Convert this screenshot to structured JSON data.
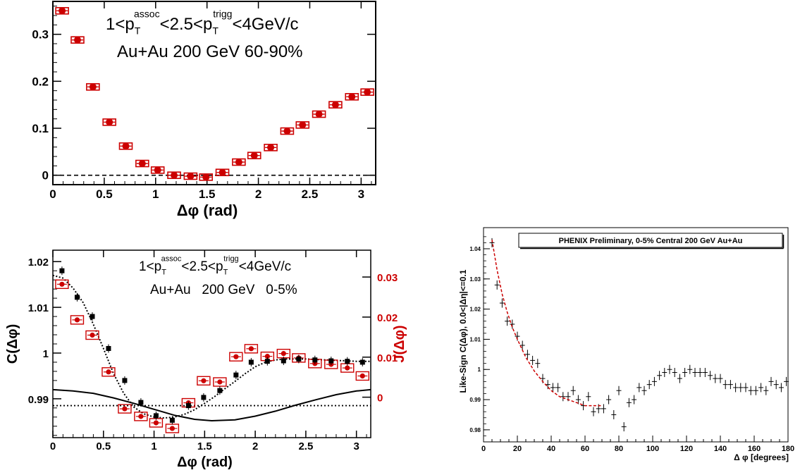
{
  "chart_data": [
    {
      "type": "scatter",
      "annotation_line1": "1<p_T^assoc<2.5<p_T^trigg<4GeV/c",
      "annotation_parts": [
        "1<p",
        "T",
        "assoc",
        "<2.5<p",
        "T",
        "trigg",
        "<4GeV/c"
      ],
      "annotation_line2": "Au+Au 200 GeV 60-90%",
      "xlabel": "Δφ (rad)",
      "xlim": [
        0,
        3.14159
      ],
      "ylim": [
        -0.02,
        0.37
      ],
      "xticks": [
        "0",
        "0.5",
        "1",
        "1.5",
        "2",
        "2.5",
        "3"
      ],
      "yticks": [
        "0",
        "0.1",
        "0.2",
        "0.3"
      ],
      "colors": {
        "points": "#cc0000"
      },
      "series": [
        {
          "x": [
            0.09,
            0.24,
            0.39,
            0.55,
            0.71,
            0.87,
            1.02,
            1.18,
            1.34,
            1.49,
            1.65,
            1.81,
            1.96,
            2.12,
            2.28,
            2.43,
            2.59,
            2.75,
            2.91,
            3.06
          ],
          "y": [
            0.35,
            0.288,
            0.188,
            0.113,
            0.062,
            0.025,
            0.011,
            0.0,
            -0.002,
            -0.004,
            0.006,
            0.028,
            0.042,
            0.059,
            0.094,
            0.107,
            0.13,
            0.15,
            0.167,
            0.177
          ]
        }
      ],
      "reference_line": 0
    },
    {
      "type": "scatter",
      "annotation_line1": "1<p_T^assoc<2.5<p_T^trigg<4GeV/c",
      "annotation_parts": [
        "1<p",
        "T",
        "assoc",
        "<2.5<p",
        "T",
        "trigg",
        "<4GeV/c"
      ],
      "annotation_line2": "Au+Au   200 GeV   0-5%",
      "xlabel": "Δφ (rad)",
      "ylabel": "C(Δφ)",
      "y2label": "J(Δφ)",
      "xlim": [
        0,
        3.14159
      ],
      "ylim": [
        0.9815,
        1.0225
      ],
      "y2lim": [
        -0.0101,
        0.0367
      ],
      "xticks": [
        "0",
        "0.5",
        "1",
        "1.5",
        "2",
        "2.5",
        "3"
      ],
      "yticks": [
        "0.99",
        "1",
        "1.01",
        "1.02"
      ],
      "y2ticks": [
        "0",
        "0.01",
        "0.02",
        "0.03"
      ],
      "colors": {
        "C": "#000000",
        "J": "#cc0000"
      },
      "series_C": {
        "x": [
          0.09,
          0.24,
          0.39,
          0.55,
          0.71,
          0.87,
          1.02,
          1.18,
          1.34,
          1.49,
          1.65,
          1.81,
          1.96,
          2.12,
          2.28,
          2.43,
          2.59,
          2.75,
          2.91,
          3.06
        ],
        "y": [
          1.018,
          1.0122,
          1.008,
          1.001,
          0.994,
          0.9892,
          0.9863,
          0.9853,
          0.9885,
          0.9903,
          0.9918,
          0.9952,
          0.998,
          0.9982,
          0.9983,
          0.9987,
          0.9985,
          0.9983,
          0.9982,
          0.998
        ]
      },
      "series_J": {
        "x": [
          0.09,
          0.24,
          0.39,
          0.55,
          0.71,
          0.87,
          1.02,
          1.18,
          1.34,
          1.49,
          1.65,
          1.81,
          1.96,
          2.12,
          2.28,
          2.43,
          2.59,
          2.75,
          2.91,
          3.06
        ],
        "y": [
          0.0282,
          0.0193,
          0.0155,
          0.0063,
          -0.0029,
          -0.0048,
          -0.0064,
          -0.0078,
          -0.0014,
          0.0041,
          0.0038,
          0.0101,
          0.0121,
          0.0102,
          0.0109,
          0.0098,
          0.0084,
          0.0082,
          0.0073,
          0.0053
        ]
      },
      "fit_dotted": {
        "x": [
          0.0,
          0.1,
          0.2,
          0.3,
          0.4,
          0.5,
          0.6,
          0.7,
          0.8,
          0.9,
          1.0,
          1.1,
          1.2,
          1.3,
          1.4,
          1.5,
          1.6,
          1.7,
          1.8,
          1.9,
          2.0,
          2.1,
          2.2,
          2.3,
          2.4,
          2.5,
          2.6,
          2.7,
          2.8,
          2.9,
          3.0,
          3.14
        ],
        "y": [
          1.017,
          1.0164,
          1.0142,
          1.011,
          1.0063,
          1.001,
          0.9955,
          0.9912,
          0.9882,
          0.9867,
          0.986,
          0.9858,
          0.986,
          0.9866,
          0.9876,
          0.989,
          0.9905,
          0.9922,
          0.9938,
          0.9955,
          0.997,
          0.998,
          0.9985,
          0.9987,
          0.9987,
          0.9987,
          0.9986,
          0.9985,
          0.9984,
          0.9983,
          0.9982,
          0.9982
        ]
      },
      "flow_solid": {
        "x": [
          0.0,
          0.2,
          0.4,
          0.6,
          0.8,
          1.0,
          1.2,
          1.4,
          1.57,
          1.8,
          2.0,
          2.2,
          2.4,
          2.6,
          2.8,
          3.0,
          3.14
        ],
        "y": [
          0.992,
          0.9917,
          0.9912,
          0.9902,
          0.989,
          0.9877,
          0.9864,
          0.9855,
          0.9852,
          0.9854,
          0.9862,
          0.9873,
          0.9886,
          0.9898,
          0.9909,
          0.9917,
          0.992
        ]
      },
      "reference_line": 0.9885
    },
    {
      "type": "scatter",
      "legend": "PHENIX Preliminary, 0-5% Central 200 GeV Au+Au",
      "xlabel": "Δ φ [degrees]",
      "ylabel": "Like-Sign C(Δφ), 0.0<|Δη|<=0.1",
      "xlim": [
        0,
        180
      ],
      "ylim": [
        0.976,
        1.047
      ],
      "xticks": [
        "0",
        "20",
        "40",
        "60",
        "80",
        "100",
        "120",
        "140",
        "160",
        "180"
      ],
      "yticks": [
        "0.98",
        "0.99",
        "1",
        "1.01",
        "1.02",
        "1.03",
        "1.04"
      ],
      "colors": {
        "points": "#000000",
        "fit": "#cc0000"
      },
      "series": [
        {
          "x": [
            5,
            8,
            11,
            14,
            17,
            20,
            23,
            26,
            29,
            32,
            35,
            38,
            41,
            44,
            47,
            50,
            53,
            56,
            59,
            62,
            65,
            68,
            71,
            74,
            77,
            80,
            83,
            86,
            89,
            92,
            95,
            98,
            101,
            104,
            107,
            110,
            113,
            116,
            119,
            122,
            125,
            128,
            131,
            134,
            137,
            140,
            143,
            146,
            149,
            152,
            155,
            158,
            161,
            164,
            167,
            170,
            173,
            176,
            179
          ],
          "y": [
            1.042,
            1.028,
            1.022,
            1.016,
            1.015,
            1.011,
            1.008,
            1.005,
            1.003,
            1.002,
            0.997,
            0.995,
            0.994,
            0.994,
            0.991,
            0.991,
            0.993,
            0.99,
            0.988,
            0.991,
            0.986,
            0.987,
            0.987,
            0.99,
            0.985,
            0.993,
            0.981,
            0.989,
            0.99,
            0.994,
            0.993,
            0.995,
            0.996,
            0.998,
            0.999,
            1.0,
            0.999,
            0.997,
            0.999,
            1.0,
            0.999,
            0.999,
            0.999,
            0.998,
            0.997,
            0.997,
            0.995,
            0.995,
            0.994,
            0.994,
            0.994,
            0.993,
            0.993,
            0.994,
            0.993,
            0.996,
            0.995,
            0.994,
            0.996
          ]
        }
      ],
      "fit": {
        "x": [
          5,
          8,
          11,
          14,
          17,
          20,
          25,
          30,
          35,
          40,
          45,
          50,
          55,
          60,
          65,
          70
        ],
        "y": [
          1.043,
          1.033,
          1.025,
          1.019,
          1.014,
          1.01,
          1.004,
          0.9995,
          0.996,
          0.993,
          0.991,
          0.99,
          0.989,
          0.988,
          0.988,
          0.988
        ]
      }
    }
  ]
}
